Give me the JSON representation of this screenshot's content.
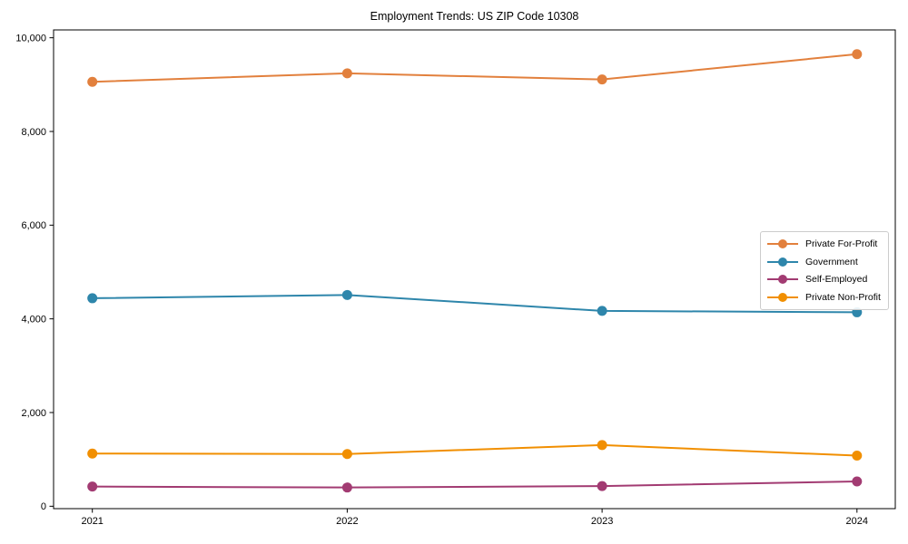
{
  "chart_data": {
    "type": "line",
    "title": "Employment Trends: US ZIP Code 10308",
    "x": [
      2021,
      2022,
      2023,
      2024
    ],
    "xtick_labels": [
      "2021",
      "2022",
      "2023",
      "2024"
    ],
    "yticks": [
      0,
      2000,
      4000,
      6000,
      8000,
      10000
    ],
    "ytick_labels": [
      "0",
      "2,000",
      "4,000",
      "6,000",
      "8,000",
      "10,000"
    ],
    "ylim": [
      -60,
      10170
    ],
    "grid": false,
    "legend_position": "center right",
    "series": [
      {
        "name": "Private For-Profit",
        "color": "#E2803D",
        "values": [
          9060,
          9240,
          9110,
          9650
        ]
      },
      {
        "name": "Government",
        "color": "#2E86AB",
        "values": [
          4440,
          4510,
          4170,
          4140
        ]
      },
      {
        "name": "Self-Employed",
        "color": "#A23B72",
        "values": [
          420,
          400,
          430,
          530
        ]
      },
      {
        "name": "Private Non-Profit",
        "color": "#F18F01",
        "values": [
          1125,
          1115,
          1305,
          1080
        ]
      }
    ]
  }
}
